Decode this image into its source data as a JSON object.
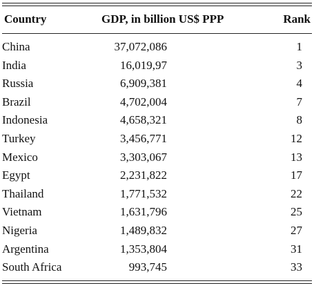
{
  "table": {
    "headers": {
      "country": "Country",
      "gdp": "GDP, in billion US$ PPP",
      "rank": "Rank"
    },
    "rows": [
      {
        "country": "China",
        "gdp": "37,072,086",
        "rank": "1"
      },
      {
        "country": "India",
        "gdp": "16,019,97",
        "rank": "3"
      },
      {
        "country": "Russia",
        "gdp": "6,909,381",
        "rank": "4"
      },
      {
        "country": "Brazil",
        "gdp": "4,702,004",
        "rank": "7"
      },
      {
        "country": "Indonesia",
        "gdp": "4,658,321",
        "rank": "8"
      },
      {
        "country": "Turkey",
        "gdp": "3,456,771",
        "rank": "12"
      },
      {
        "country": "Mexico",
        "gdp": "3,303,067",
        "rank": "13"
      },
      {
        "country": "Egypt",
        "gdp": "2,231,822",
        "rank": "17"
      },
      {
        "country": "Thailand",
        "gdp": "1,771,532",
        "rank": "22"
      },
      {
        "country": "Vietnam",
        "gdp": "1,631,796",
        "rank": "25"
      },
      {
        "country": "Nigeria",
        "gdp": "1,489,832",
        "rank": "27"
      },
      {
        "country": "Argentina",
        "gdp": "1,353,804",
        "rank": "31"
      },
      {
        "country": "South Africa",
        "gdp": "993,745",
        "rank": "33"
      }
    ]
  }
}
